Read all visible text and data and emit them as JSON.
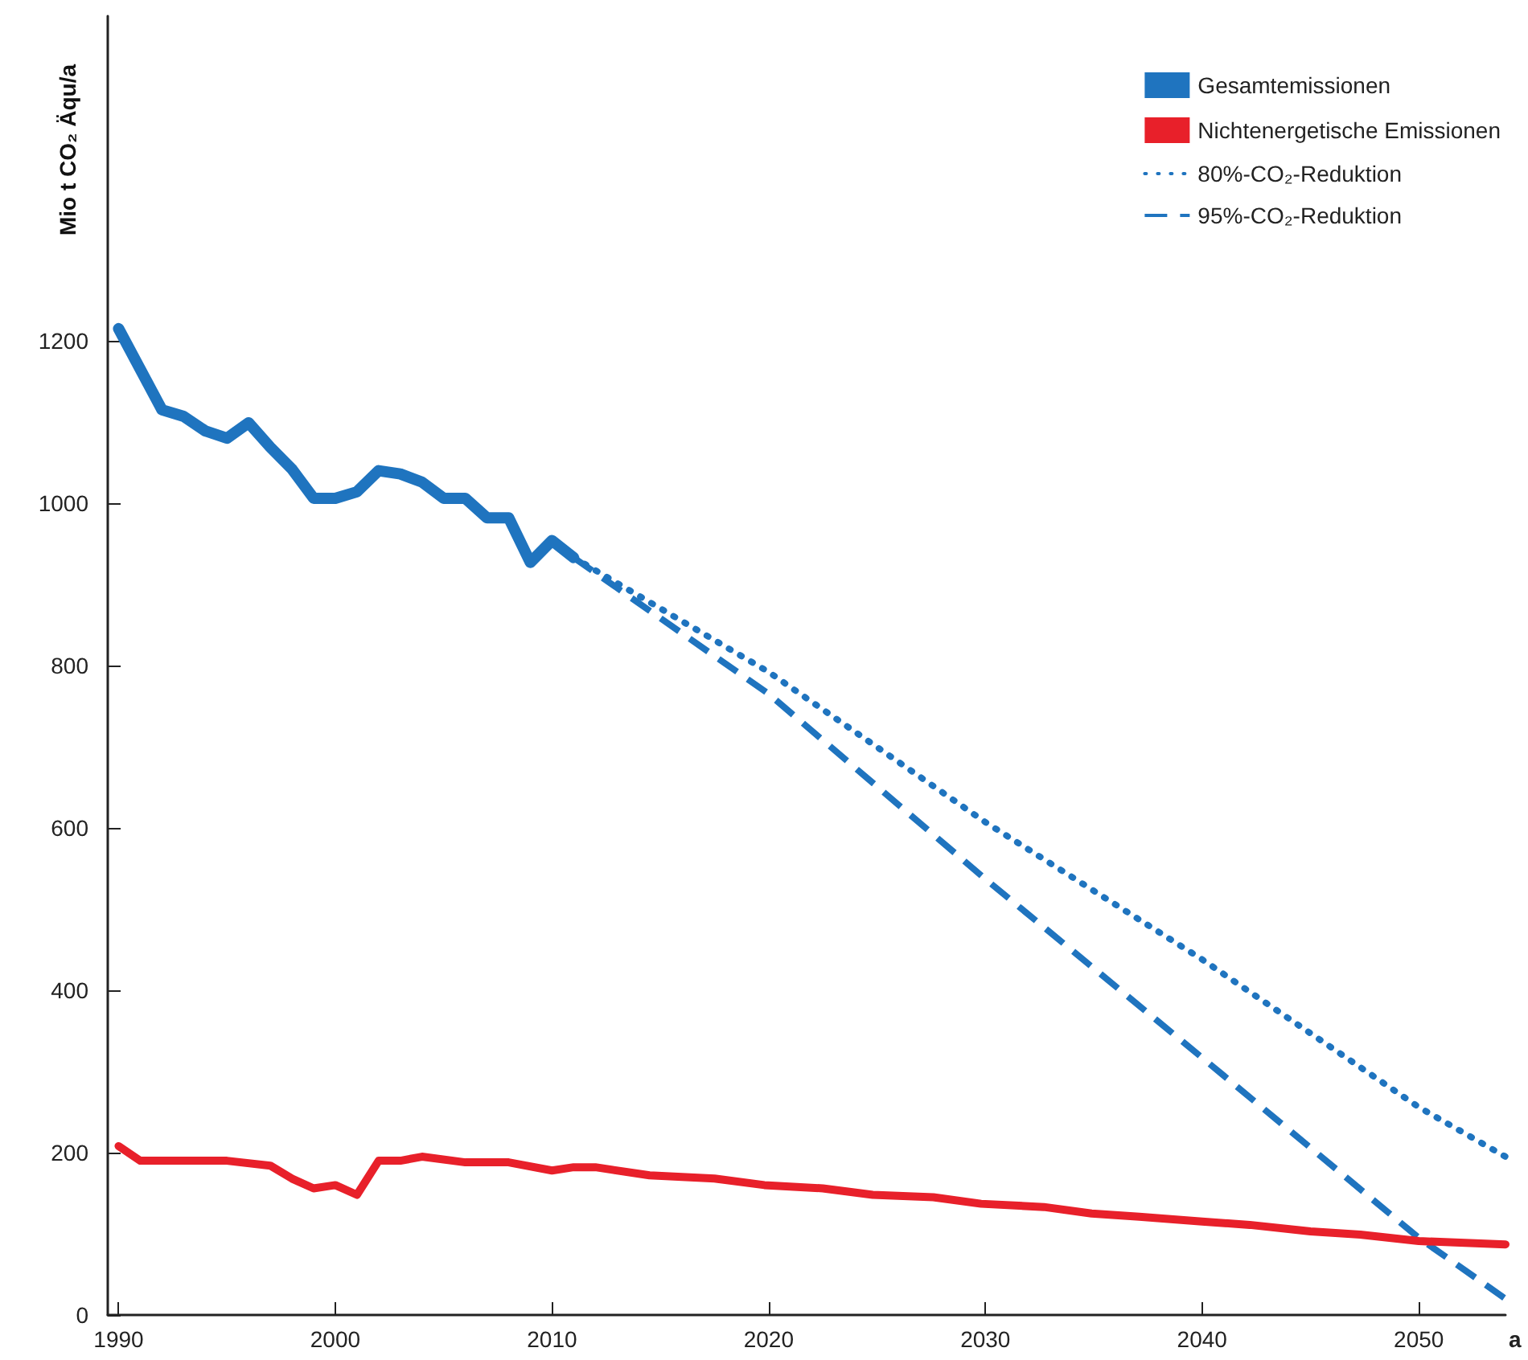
{
  "chart_data": {
    "type": "line",
    "ylabel": "Mio t CO₂ Äqu/a",
    "xlabel": "a",
    "xlim": [
      1989.5,
      2054
    ],
    "xticks": [
      1990,
      2000,
      2010,
      2020,
      2030,
      2040,
      2050
    ],
    "ylim": [
      0,
      1600
    ],
    "yticks": [
      0,
      200,
      400,
      600,
      800,
      1000,
      1200
    ],
    "grid": false,
    "legend": "top right",
    "marker": "none",
    "series": [
      {
        "name": "Gesamtemissionen",
        "color": "#1f74bf",
        "line_style": "solid",
        "x": [
          1990,
          1991,
          1992,
          1993,
          1994,
          1995,
          1996,
          1997,
          1998,
          1999,
          2000,
          2001,
          2002,
          2003,
          2004,
          2005,
          2006,
          2007,
          2008,
          2009,
          2010,
          2011
        ],
        "values": [
          1215,
          1165,
          1115,
          1107,
          1089,
          1080,
          1099,
          1069,
          1042,
          1006,
          1006,
          1014,
          1040,
          1036,
          1026,
          1006,
          1006,
          982,
          982,
          927,
          954,
          933
        ]
      },
      {
        "name": "Nichtenergetische Emissionen",
        "color": "#e8202a",
        "line_style": "solid",
        "x": [
          1990,
          1991,
          1995,
          1997,
          1998,
          1999,
          2000,
          2001,
          2002,
          2003,
          2004,
          2006,
          2008,
          2010,
          2011,
          2012,
          2014.5,
          2017.5,
          2019.8,
          2022.5,
          2024.8,
          2027.6,
          2029.8,
          2032.7,
          2034.9,
          2037.1,
          2040,
          2042.2,
          2045,
          2047.3,
          2050,
          2054
        ],
        "values": [
          208,
          190,
          190,
          184,
          168,
          156,
          160,
          148,
          190,
          190,
          195,
          188,
          188,
          178,
          182,
          182,
          172,
          168,
          160,
          156,
          148,
          145,
          137,
          133,
          125,
          121,
          115,
          111,
          103,
          99,
          91,
          87
        ]
      },
      {
        "name": "80%-CO₂-Reduktion",
        "color": "#1f74bf",
        "line_style": "dotted",
        "x": [
          2011,
          2020,
          2030,
          2040,
          2050,
          2054
        ],
        "values": [
          933,
          792,
          607,
          438,
          256,
          195
        ]
      },
      {
        "name": "95%-CO₂-Reduktion",
        "color": "#1f74bf",
        "line_style": "dashed",
        "x": [
          2011,
          2020,
          2030,
          2040,
          2050,
          2054
        ],
        "values": [
          933,
          765,
          537,
          317,
          95,
          20
        ]
      }
    ]
  }
}
